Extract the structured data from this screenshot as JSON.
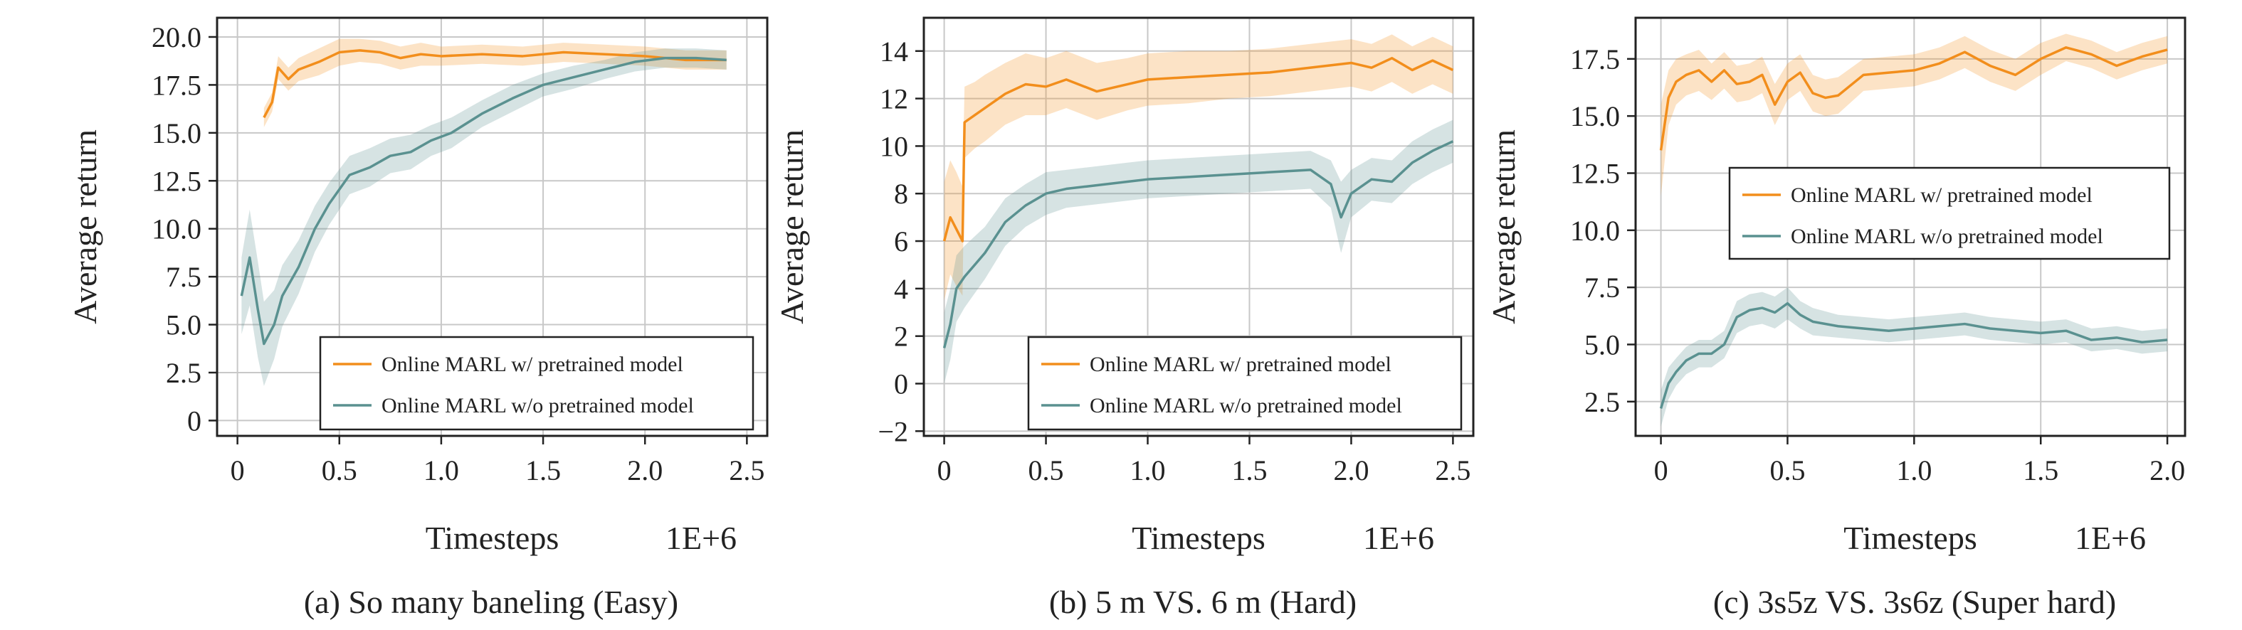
{
  "colors": {
    "with_pretrained": "#f28e1c",
    "without_pretrained": "#5a9190",
    "grid": "#c8c8c8",
    "axes": "#222222"
  },
  "chart_data": [
    {
      "type": "line",
      "caption": "(a) So many baneling (Easy)",
      "xlabel": "Timesteps",
      "xscale_label": "1E+6",
      "ylabel": "Average return",
      "xlim": [
        -0.1,
        2.6
      ],
      "ylim": [
        -0.8,
        21.0
      ],
      "xticks": [
        0,
        0.5,
        1.0,
        1.5,
        2.0,
        2.5
      ],
      "xtick_labels": [
        "0",
        "0.5",
        "1.0",
        "1.5",
        "2.0",
        "2.5"
      ],
      "yticks": [
        0,
        2.5,
        5.0,
        7.5,
        10.0,
        12.5,
        15.0,
        17.5,
        20.0
      ],
      "ytick_labels": [
        "0",
        "2.5",
        "5.0",
        "7.5",
        "10.0",
        "12.5",
        "15.0",
        "17.5",
        "20.0"
      ],
      "grid": true,
      "legend": {
        "placement": "lower-right",
        "boxed": true
      },
      "series": [
        {
          "name": "Online MARL w/ pretrained model",
          "x": [
            0.13,
            0.17,
            0.2,
            0.25,
            0.3,
            0.4,
            0.5,
            0.6,
            0.7,
            0.8,
            0.9,
            1.0,
            1.2,
            1.4,
            1.6,
            1.8,
            2.0,
            2.2,
            2.4
          ],
          "y": [
            15.8,
            16.6,
            18.4,
            17.8,
            18.3,
            18.7,
            19.2,
            19.3,
            19.2,
            18.9,
            19.1,
            19.0,
            19.1,
            19.0,
            19.2,
            19.1,
            19.0,
            18.8,
            18.8
          ],
          "band": [
            0.5,
            0.5,
            0.6,
            0.6,
            0.6,
            0.7,
            0.7,
            0.6,
            0.6,
            0.6,
            0.6,
            0.5,
            0.5,
            0.5,
            0.5,
            0.5,
            0.5,
            0.5,
            0.5
          ]
        },
        {
          "name": "Online MARL w/o pretrained model",
          "x": [
            0.02,
            0.06,
            0.1,
            0.13,
            0.18,
            0.22,
            0.3,
            0.38,
            0.45,
            0.55,
            0.65,
            0.75,
            0.85,
            0.95,
            1.05,
            1.2,
            1.35,
            1.5,
            1.65,
            1.8,
            1.95,
            2.1,
            2.25,
            2.4
          ],
          "y": [
            6.5,
            8.5,
            5.8,
            4.0,
            5.0,
            6.5,
            8.0,
            10.0,
            11.3,
            12.8,
            13.2,
            13.8,
            14.0,
            14.6,
            15.0,
            16.0,
            16.8,
            17.5,
            17.9,
            18.3,
            18.7,
            18.9,
            18.9,
            18.8
          ],
          "band": [
            2.0,
            2.5,
            2.5,
            2.2,
            1.8,
            1.6,
            1.4,
            1.2,
            1.1,
            1.0,
            1.0,
            0.9,
            0.9,
            0.8,
            0.8,
            0.7,
            0.7,
            0.6,
            0.6,
            0.5,
            0.5,
            0.5,
            0.5,
            0.5
          ]
        }
      ]
    },
    {
      "type": "line",
      "caption": "(b) 5 m VS. 6 m (Hard)",
      "xlabel": "Timesteps",
      "xscale_label": "1E+6",
      "ylabel": "Average return",
      "xlim": [
        -0.1,
        2.6
      ],
      "ylim": [
        -2.2,
        15.4
      ],
      "xticks": [
        0,
        0.5,
        1.0,
        1.5,
        2.0,
        2.5
      ],
      "xtick_labels": [
        "0",
        "0.5",
        "1.0",
        "1.5",
        "2.0",
        "2.5"
      ],
      "yticks": [
        -2,
        0,
        2,
        4,
        6,
        8,
        10,
        12,
        14
      ],
      "ytick_labels": [
        "−2",
        "0",
        "2",
        "4",
        "6",
        "8",
        "10",
        "12",
        "14"
      ],
      "grid": true,
      "legend": {
        "placement": "lower-right",
        "boxed": true
      },
      "series": [
        {
          "name": "Online MARL w/ pretrained model",
          "x": [
            0.0,
            0.03,
            0.06,
            0.09,
            0.1,
            0.15,
            0.2,
            0.3,
            0.4,
            0.5,
            0.6,
            0.75,
            0.9,
            1.0,
            1.2,
            1.4,
            1.6,
            1.8,
            2.0,
            2.1,
            2.2,
            2.3,
            2.4,
            2.5
          ],
          "y": [
            6.0,
            7.0,
            6.5,
            6.0,
            11.0,
            11.3,
            11.6,
            12.2,
            12.6,
            12.5,
            12.8,
            12.3,
            12.6,
            12.8,
            12.9,
            13.0,
            13.1,
            13.3,
            13.5,
            13.3,
            13.7,
            13.2,
            13.6,
            13.2
          ],
          "band": [
            2.5,
            2.4,
            2.4,
            2.3,
            1.5,
            1.4,
            1.4,
            1.3,
            1.3,
            1.2,
            1.2,
            1.2,
            1.1,
            1.1,
            1.1,
            1.0,
            1.0,
            1.0,
            1.0,
            1.0,
            1.0,
            1.0,
            1.0,
            1.0
          ]
        },
        {
          "name": "Online MARL w/o pretrained model",
          "x": [
            0.0,
            0.03,
            0.06,
            0.1,
            0.15,
            0.2,
            0.3,
            0.4,
            0.5,
            0.6,
            0.7,
            0.8,
            0.9,
            1.0,
            1.2,
            1.4,
            1.6,
            1.8,
            1.9,
            1.95,
            2.0,
            2.1,
            2.2,
            2.3,
            2.4,
            2.5
          ],
          "y": [
            1.5,
            2.5,
            4.0,
            4.5,
            5.0,
            5.5,
            6.8,
            7.5,
            8.0,
            8.2,
            8.3,
            8.4,
            8.5,
            8.6,
            8.7,
            8.8,
            8.9,
            9.0,
            8.4,
            7.0,
            8.0,
            8.6,
            8.5,
            9.3,
            9.8,
            10.2
          ],
          "band": [
            1.5,
            1.5,
            1.4,
            1.3,
            1.2,
            1.1,
            1.0,
            0.9,
            0.9,
            0.8,
            0.8,
            0.8,
            0.8,
            0.8,
            0.8,
            0.8,
            0.8,
            0.8,
            1.0,
            1.5,
            1.0,
            0.9,
            0.9,
            0.9,
            0.9,
            0.9
          ]
        }
      ]
    },
    {
      "type": "line",
      "caption": "(c) 3s5z VS. 3s6z (Super hard)",
      "xlabel": "Timesteps",
      "xscale_label": "1E+6",
      "ylabel": "Average return",
      "xlim": [
        -0.1,
        2.07
      ],
      "ylim": [
        1.0,
        19.3
      ],
      "xticks": [
        0,
        0.5,
        1.0,
        1.5,
        2.0
      ],
      "xtick_labels": [
        "0",
        "0.5",
        "1.0",
        "1.5",
        "2.0"
      ],
      "yticks": [
        2.5,
        5.0,
        7.5,
        10.0,
        12.5,
        15.0,
        17.5
      ],
      "ytick_labels": [
        "2.5",
        "5.0",
        "7.5",
        "10.0",
        "12.5",
        "15.0",
        "17.5"
      ],
      "grid": true,
      "legend": {
        "placement": "center-right",
        "boxed": true
      },
      "series": [
        {
          "name": "Online MARL w/ pretrained model",
          "x": [
            0.0,
            0.03,
            0.06,
            0.1,
            0.15,
            0.2,
            0.25,
            0.3,
            0.35,
            0.4,
            0.45,
            0.5,
            0.55,
            0.6,
            0.65,
            0.7,
            0.8,
            0.9,
            1.0,
            1.1,
            1.2,
            1.3,
            1.4,
            1.5,
            1.6,
            1.7,
            1.8,
            1.9,
            2.0
          ],
          "y": [
            13.5,
            15.8,
            16.5,
            16.8,
            17.0,
            16.5,
            17.0,
            16.4,
            16.5,
            16.8,
            15.5,
            16.5,
            16.9,
            16.0,
            15.8,
            15.9,
            16.8,
            16.9,
            17.0,
            17.3,
            17.8,
            17.2,
            16.8,
            17.5,
            18.0,
            17.7,
            17.2,
            17.6,
            17.9
          ],
          "band": [
            2.0,
            1.2,
            1.0,
            0.9,
            0.9,
            0.8,
            0.8,
            0.8,
            0.8,
            0.8,
            0.9,
            0.8,
            0.8,
            0.8,
            0.8,
            0.8,
            0.7,
            0.7,
            0.7,
            0.7,
            0.7,
            0.7,
            0.7,
            0.7,
            0.6,
            0.6,
            0.6,
            0.6,
            0.6
          ]
        },
        {
          "name": "Online MARL w/o pretrained model",
          "x": [
            0.0,
            0.03,
            0.06,
            0.1,
            0.15,
            0.2,
            0.25,
            0.3,
            0.35,
            0.4,
            0.45,
            0.5,
            0.55,
            0.6,
            0.7,
            0.8,
            0.9,
            1.0,
            1.1,
            1.2,
            1.3,
            1.4,
            1.5,
            1.6,
            1.7,
            1.8,
            1.9,
            2.0
          ],
          "y": [
            2.2,
            3.3,
            3.8,
            4.3,
            4.6,
            4.6,
            5.0,
            6.2,
            6.5,
            6.6,
            6.4,
            6.8,
            6.3,
            6.0,
            5.8,
            5.7,
            5.6,
            5.7,
            5.8,
            5.9,
            5.7,
            5.6,
            5.5,
            5.6,
            5.2,
            5.3,
            5.1,
            5.2
          ],
          "band": [
            0.8,
            0.7,
            0.6,
            0.6,
            0.6,
            0.6,
            0.6,
            0.7,
            0.7,
            0.7,
            0.7,
            0.7,
            0.6,
            0.6,
            0.5,
            0.5,
            0.5,
            0.5,
            0.5,
            0.5,
            0.5,
            0.5,
            0.5,
            0.5,
            0.5,
            0.5,
            0.5,
            0.5
          ]
        }
      ]
    }
  ]
}
